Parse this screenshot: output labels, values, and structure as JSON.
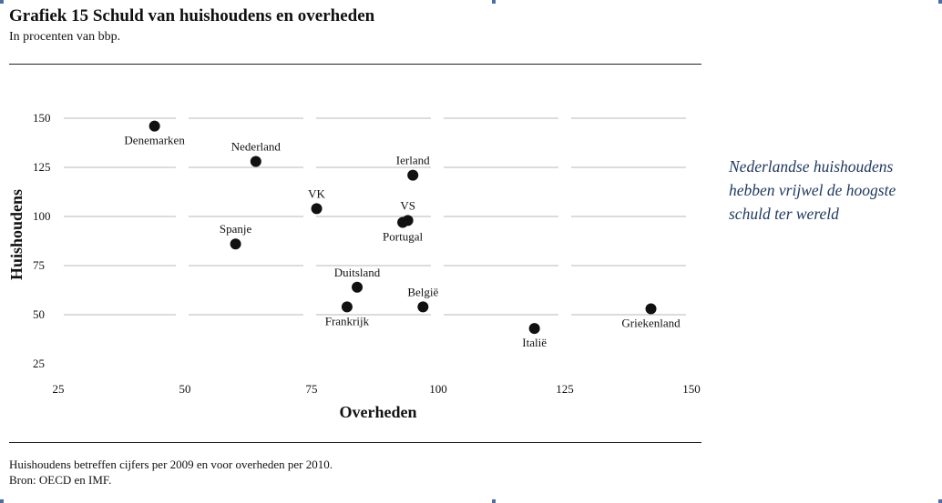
{
  "header": {
    "title": "Grafiek 15  Schuld van huishoudens en overheden",
    "subtitle": "In procenten van bbp."
  },
  "side_note": {
    "lines": [
      "Nederlandse huishoudens",
      "hebben vrijwel de hoogste",
      "schuld ter wereld"
    ]
  },
  "footnote": {
    "line1": "Huishoudens betreffen cijfers per 2009 en voor overheden per 2010.",
    "line2": "Bron: OECD en IMF."
  },
  "colors": {
    "point": "#111111",
    "grid": "#c8c8c8",
    "note": "#1f3a60"
  },
  "chart_data": {
    "type": "scatter",
    "xlabel": "Overheden",
    "ylabel": "Huishoudens",
    "xlim": [
      25,
      150
    ],
    "ylim": [
      25,
      150
    ],
    "xticks": [
      25,
      50,
      75,
      100,
      125,
      150
    ],
    "yticks": [
      25,
      50,
      75,
      100,
      125,
      150
    ],
    "grid": "horizontal",
    "points": [
      {
        "label": "Denemarken",
        "x": 44,
        "y": 146,
        "label_pos": "below"
      },
      {
        "label": "Nederland",
        "x": 64,
        "y": 128,
        "label_pos": "above"
      },
      {
        "label": "Ierland",
        "x": 95,
        "y": 121,
        "label_pos": "above"
      },
      {
        "label": "VK",
        "x": 76,
        "y": 104,
        "label_pos": "above"
      },
      {
        "label": "VS",
        "x": 94,
        "y": 98,
        "label_pos": "above"
      },
      {
        "label": "Portugal",
        "x": 93,
        "y": 97,
        "label_pos": "below"
      },
      {
        "label": "Spanje",
        "x": 60,
        "y": 86,
        "label_pos": "above"
      },
      {
        "label": "Duitsland",
        "x": 84,
        "y": 64,
        "label_pos": "above"
      },
      {
        "label": "België",
        "x": 97,
        "y": 54,
        "label_pos": "above"
      },
      {
        "label": "Frankrijk",
        "x": 82,
        "y": 54,
        "label_pos": "below"
      },
      {
        "label": "Italië",
        "x": 119,
        "y": 43,
        "label_pos": "below"
      },
      {
        "label": "Griekenland",
        "x": 142,
        "y": 53,
        "label_pos": "below"
      }
    ]
  }
}
